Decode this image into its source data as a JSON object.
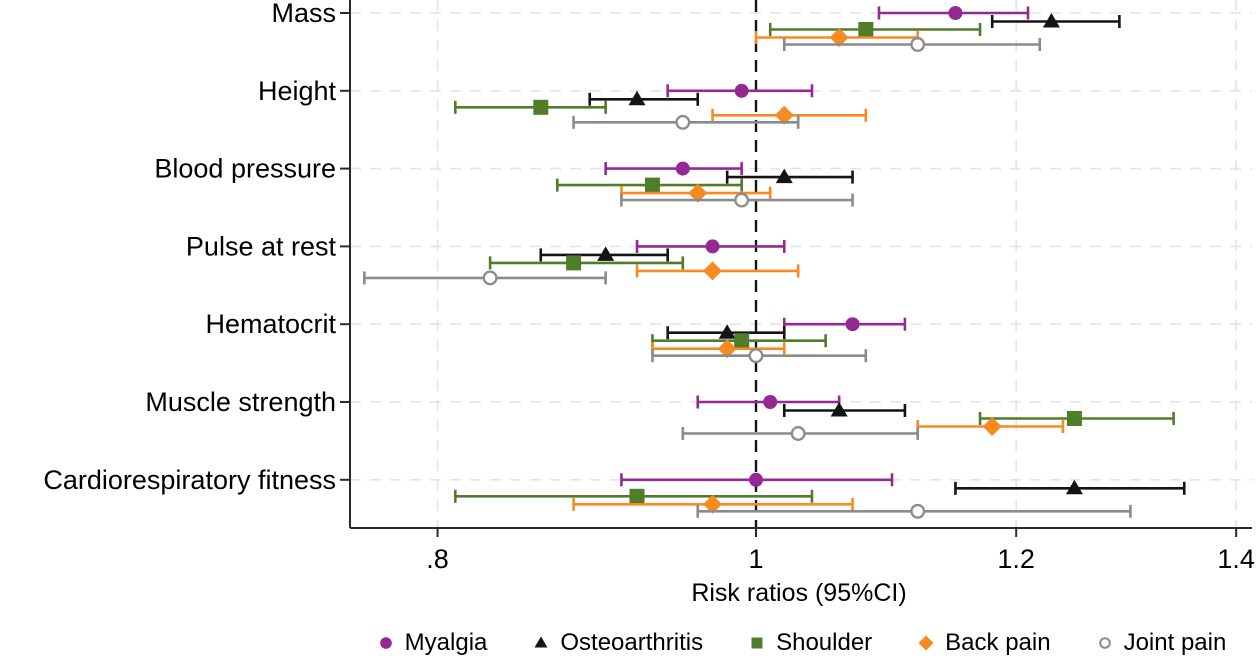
{
  "chart_data": {
    "type": "scatter",
    "subtype": "forest-plot",
    "title": "",
    "xlabel": "Risk ratios (95%CI)",
    "ylabel": "",
    "x_scale": "log",
    "xlim": [
      0.75,
      1.42
    ],
    "x_ticks": [
      0.8,
      1.0,
      1.2,
      1.4
    ],
    "x_tick_labels": [
      ".8",
      "1",
      "1.2",
      "1.4"
    ],
    "reference_line": 1.0,
    "grid": "light-dashed-both-axes",
    "legend_position": "bottom",
    "categories": [
      "Mass",
      "Height",
      "Blood pressure",
      "Pulse at rest",
      "Hematocrit",
      "Muscle strength",
      "Cardiorespiratory fitness"
    ],
    "series": [
      {
        "name": "Myalgia",
        "marker": "circle",
        "fill": "solid",
        "color": "#942994",
        "rr": [
          1.15,
          0.99,
          0.95,
          0.97,
          1.07,
          1.01,
          1.0
        ],
        "lo": [
          1.09,
          0.94,
          0.9,
          0.92,
          1.02,
          0.96,
          0.91
        ],
        "hi": [
          1.21,
          1.04,
          0.99,
          1.02,
          1.11,
          1.06,
          1.1
        ]
      },
      {
        "name": "Osteoarthritis",
        "marker": "triangle",
        "fill": "solid",
        "color": "#141414",
        "rr": [
          1.23,
          0.92,
          1.02,
          0.9,
          0.98,
          1.06,
          1.25
        ],
        "lo": [
          1.18,
          0.89,
          0.98,
          0.86,
          0.94,
          1.02,
          1.15
        ],
        "hi": [
          1.29,
          0.96,
          1.07,
          0.94,
          1.02,
          1.11,
          1.35
        ]
      },
      {
        "name": "Shoulder",
        "marker": "square",
        "fill": "solid",
        "color": "#507d2a",
        "rr": [
          1.08,
          0.86,
          0.93,
          0.88,
          0.99,
          1.25,
          0.92
        ],
        "lo": [
          1.01,
          0.81,
          0.87,
          0.83,
          0.93,
          1.17,
          0.81
        ],
        "hi": [
          1.17,
          0.9,
          0.99,
          0.95,
          1.05,
          1.34,
          1.04
        ]
      },
      {
        "name": "Back pain",
        "marker": "diamond",
        "fill": "solid",
        "color": "#f78a20",
        "rr": [
          1.06,
          1.02,
          0.96,
          0.97,
          0.98,
          1.18,
          0.97
        ],
        "lo": [
          1.0,
          0.97,
          0.91,
          0.92,
          0.93,
          1.12,
          0.88
        ],
        "hi": [
          1.12,
          1.08,
          1.01,
          1.03,
          1.02,
          1.24,
          1.07
        ]
      },
      {
        "name": "Joint pain",
        "marker": "circle-open",
        "fill": "open",
        "color": "#8b8b8b",
        "rr": [
          1.12,
          0.95,
          0.99,
          0.83,
          1.0,
          1.03,
          1.12
        ],
        "lo": [
          1.02,
          0.88,
          0.91,
          0.76,
          0.93,
          0.95,
          0.96
        ],
        "hi": [
          1.22,
          1.03,
          1.07,
          0.9,
          1.08,
          1.12,
          1.3
        ]
      }
    ],
    "colors": {
      "reference_line": "#141414",
      "axis": "#2b2b2b",
      "gridline": "#e4e4e4",
      "text": "#000000"
    }
  }
}
